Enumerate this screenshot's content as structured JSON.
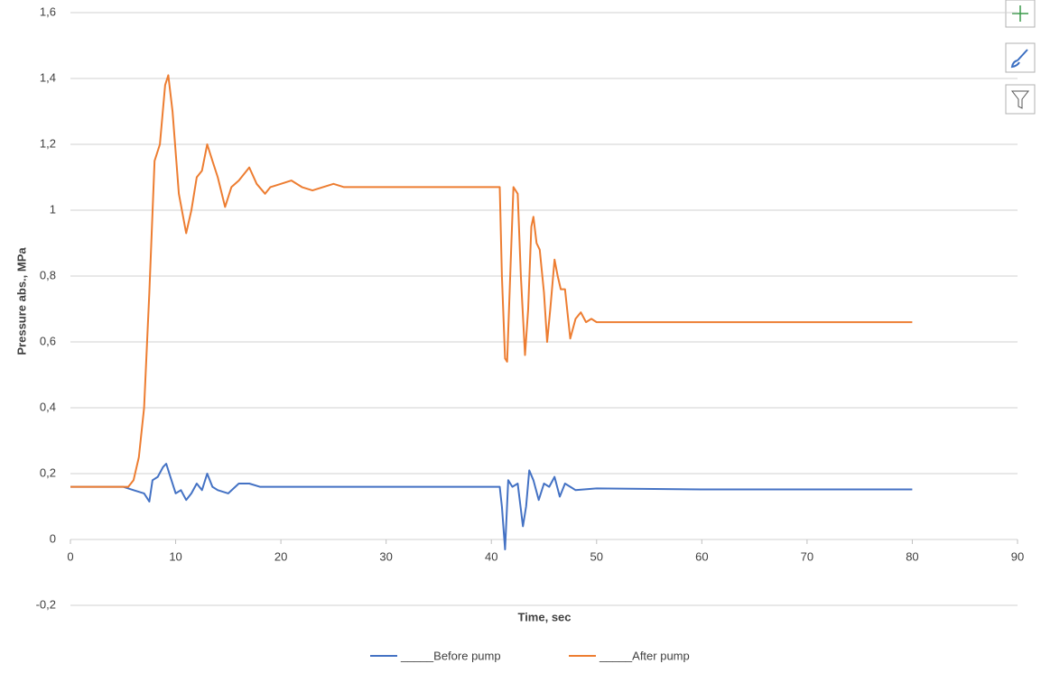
{
  "chart_data": {
    "type": "line",
    "xlabel": "Time, sec",
    "ylabel": "Pressure abs., MPa",
    "xlim": [
      0,
      90
    ],
    "xticks": [
      0,
      10,
      20,
      30,
      40,
      50,
      60,
      70,
      80,
      90
    ],
    "ylim": [
      -0.2,
      1.6
    ],
    "yticks": [
      {
        "value": -0.2,
        "label": "-0,2"
      },
      0,
      {
        "value": 0.2,
        "label": "0,2"
      },
      {
        "value": 0.4,
        "label": "0,4"
      },
      {
        "value": 0.6,
        "label": "0,6"
      },
      {
        "value": 0.8,
        "label": "0,8"
      },
      1,
      {
        "value": 1.2,
        "label": "1,2"
      },
      {
        "value": 1.4,
        "label": "1,4"
      },
      {
        "value": 1.6,
        "label": "1,6"
      }
    ],
    "grid": true,
    "legend": "bottom",
    "series": [
      {
        "name": "_____Before pump",
        "color": "#4472c4",
        "x": [
          0,
          5,
          6,
          7,
          7.5,
          7.8,
          8.3,
          8.8,
          9.1,
          9.5,
          10,
          10.5,
          11,
          11.5,
          12,
          12.5,
          13,
          13.5,
          14,
          15,
          16,
          17,
          18,
          20,
          25,
          30,
          35,
          40,
          40.8,
          41,
          41.3,
          41.6,
          42,
          42.5,
          43,
          43.3,
          43.6,
          44,
          44.5,
          45,
          45.5,
          46,
          46.5,
          47,
          48,
          50,
          60,
          80
        ],
        "values": [
          0.16,
          0.16,
          0.15,
          0.14,
          0.115,
          0.18,
          0.19,
          0.22,
          0.23,
          0.19,
          0.14,
          0.15,
          0.12,
          0.14,
          0.17,
          0.15,
          0.2,
          0.16,
          0.15,
          0.14,
          0.17,
          0.17,
          0.16,
          0.16,
          0.16,
          0.16,
          0.16,
          0.16,
          0.16,
          0.1,
          -0.03,
          0.18,
          0.16,
          0.17,
          0.04,
          0.1,
          0.21,
          0.18,
          0.12,
          0.17,
          0.16,
          0.19,
          0.13,
          0.17,
          0.15,
          0.155,
          0.152,
          0.152
        ]
      },
      {
        "name": "_____After pump",
        "color": "#ed7d31",
        "x": [
          0,
          5.5,
          6,
          6.5,
          7,
          7.5,
          8,
          8.5,
          9,
          9.3,
          9.7,
          10.3,
          11,
          11.5,
          12,
          12.5,
          13,
          13.5,
          14,
          14.7,
          15.3,
          16,
          17,
          17.7,
          18.5,
          19,
          20,
          21,
          22,
          23,
          24,
          25,
          26,
          28,
          30,
          35,
          40,
          40.8,
          41,
          41.3,
          41.5,
          41.9,
          42.1,
          42.5,
          42.8,
          43.2,
          43.5,
          43.8,
          44,
          44.3,
          44.6,
          45,
          45.3,
          45.6,
          46,
          46.3,
          46.6,
          47,
          47.5,
          48,
          48.5,
          49,
          49.5,
          50,
          52,
          55,
          80
        ],
        "values": [
          0.16,
          0.16,
          0.18,
          0.25,
          0.4,
          0.75,
          1.15,
          1.2,
          1.38,
          1.41,
          1.3,
          1.05,
          0.93,
          1.0,
          1.1,
          1.12,
          1.2,
          1.15,
          1.1,
          1.01,
          1.07,
          1.09,
          1.13,
          1.08,
          1.05,
          1.07,
          1.08,
          1.09,
          1.07,
          1.06,
          1.07,
          1.08,
          1.07,
          1.07,
          1.07,
          1.07,
          1.07,
          1.07,
          0.8,
          0.55,
          0.54,
          0.9,
          1.07,
          1.05,
          0.8,
          0.56,
          0.7,
          0.95,
          0.98,
          0.9,
          0.88,
          0.75,
          0.6,
          0.7,
          0.85,
          0.8,
          0.76,
          0.76,
          0.61,
          0.67,
          0.69,
          0.66,
          0.67,
          0.66,
          0.66,
          0.66,
          0.66
        ]
      }
    ]
  }
}
